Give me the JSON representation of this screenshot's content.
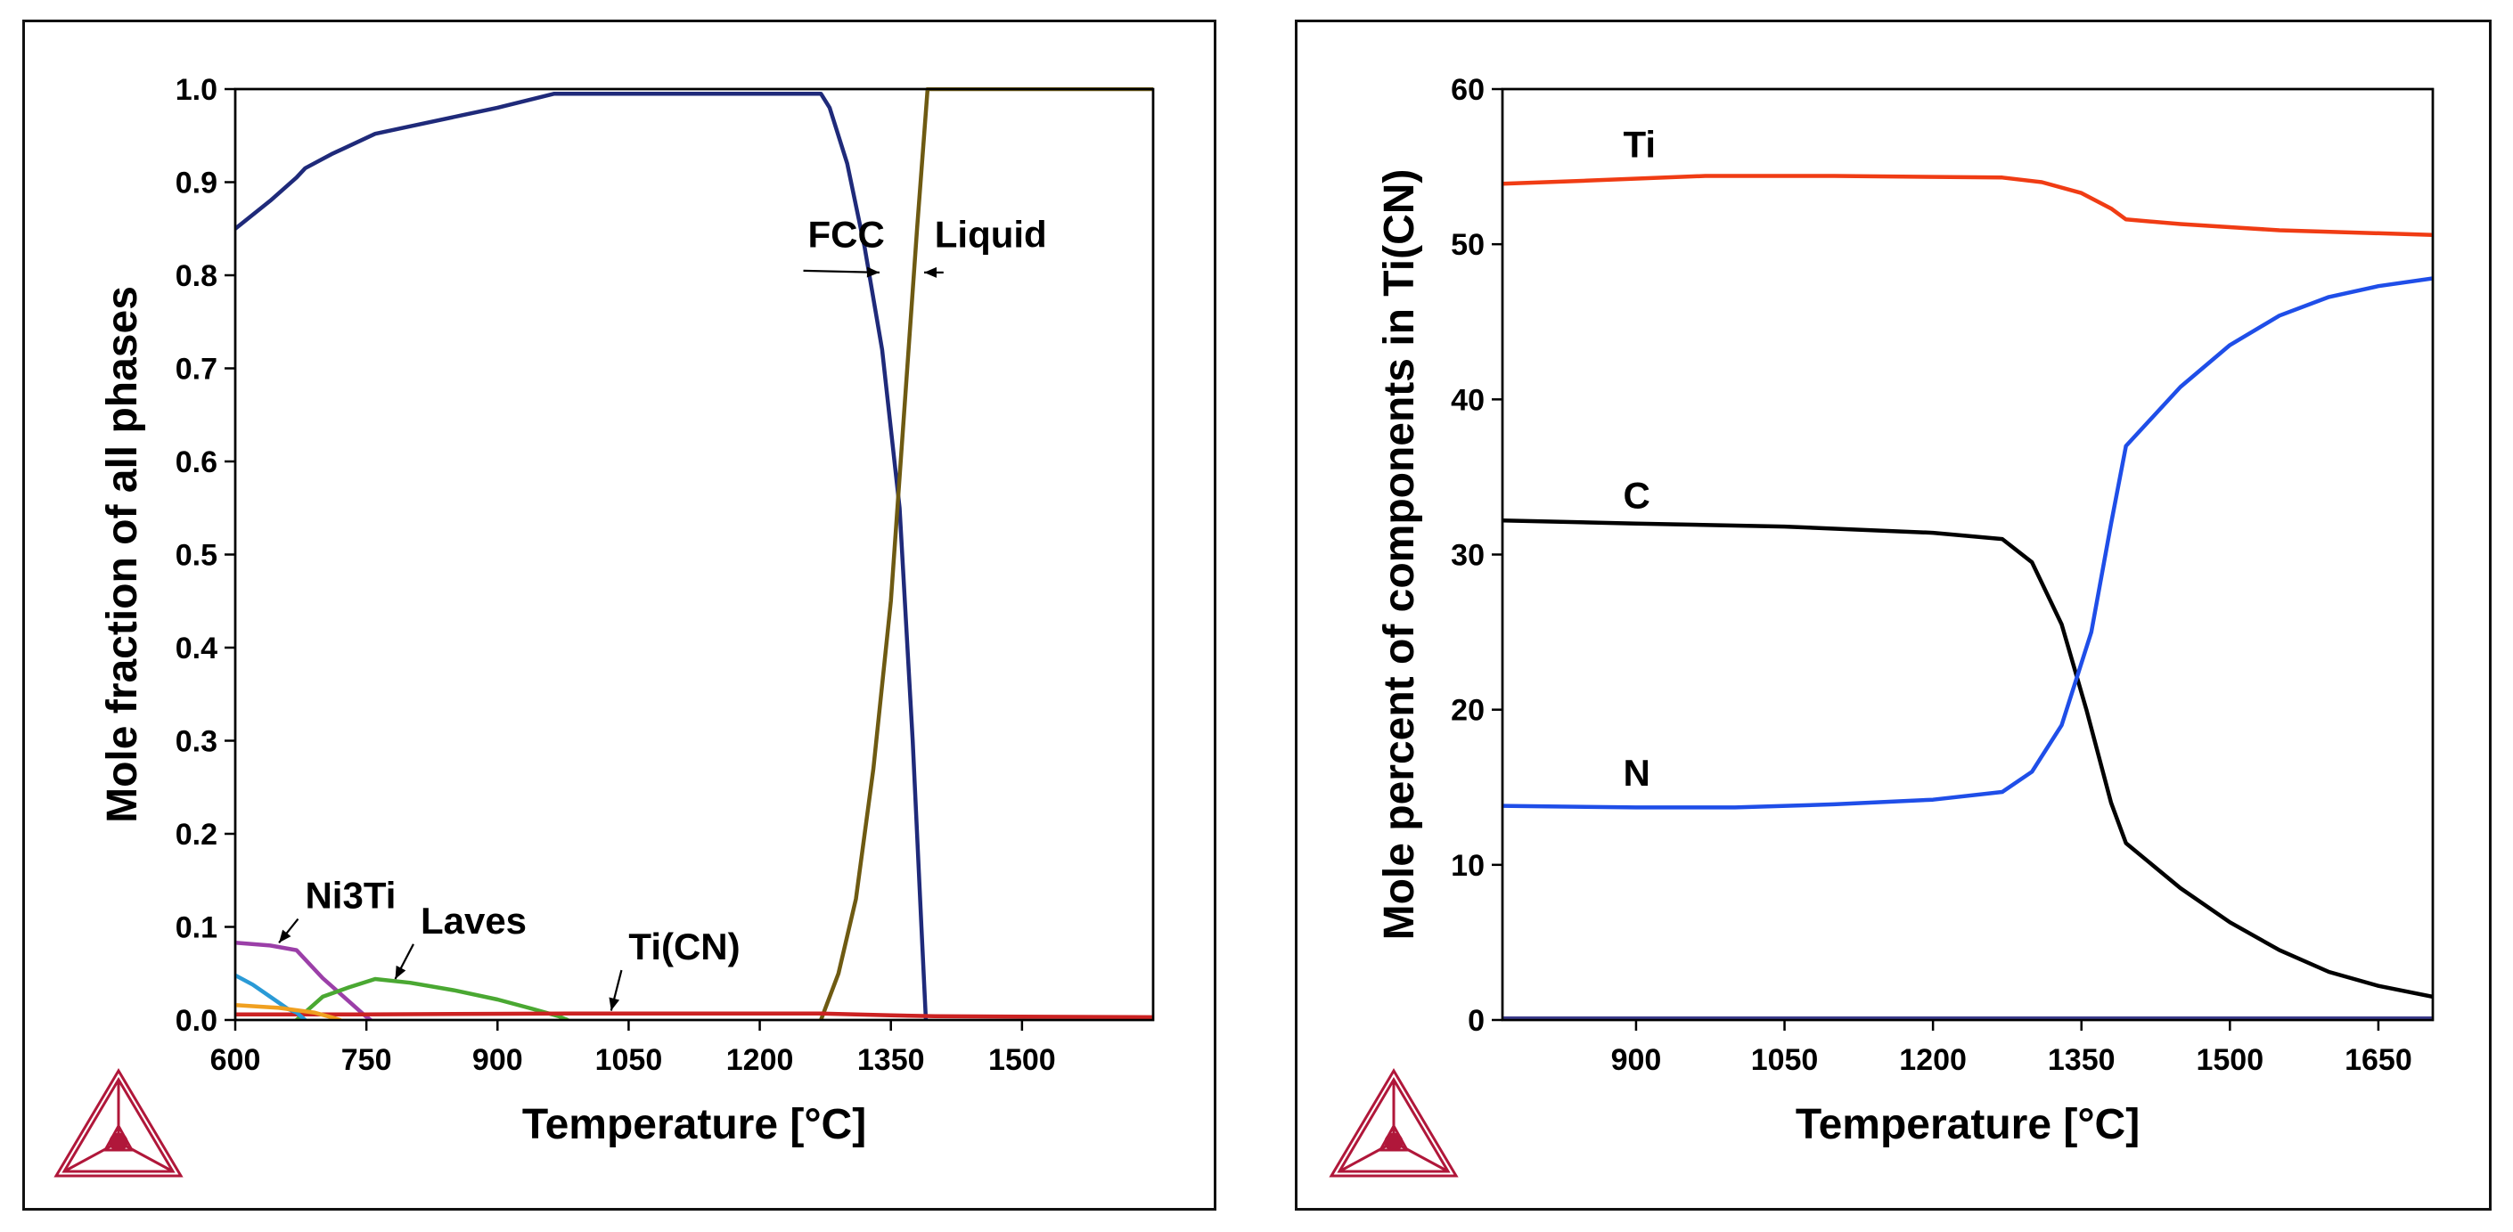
{
  "chart_data": [
    {
      "type": "line",
      "xlabel": "Temperature [°C]",
      "ylabel": "Mole fraction of all phases",
      "xlim": [
        600,
        1650
      ],
      "ylim": [
        0,
        1.0
      ],
      "xticks": [
        600,
        750,
        900,
        1050,
        1200,
        1350,
        1500
      ],
      "xtick_labels": [
        "600",
        "750",
        "900",
        "1050",
        "1200",
        "1350",
        "1500"
      ],
      "yticks": [
        0,
        0.1,
        0.2,
        0.3,
        0.4,
        0.5,
        0.6,
        0.7,
        0.8,
        0.9,
        1.0
      ],
      "ytick_labels": [
        "0.0",
        "0.1",
        "0.2",
        "0.3",
        "0.4",
        "0.5",
        "0.6",
        "0.7",
        "0.8",
        "0.9",
        "1.0"
      ],
      "series": [
        {
          "name": "FCC",
          "color": "#1f2a7a",
          "points": [
            [
              600,
              0.85
            ],
            [
              640,
              0.88
            ],
            [
              670,
              0.905
            ],
            [
              680,
              0.915
            ],
            [
              710,
              0.93
            ],
            [
              760,
              0.952
            ],
            [
              800,
              0.96
            ],
            [
              900,
              0.98
            ],
            [
              965,
              0.995
            ],
            [
              1100,
              0.995
            ],
            [
              1270,
              0.995
            ],
            [
              1280,
              0.98
            ],
            [
              1300,
              0.92
            ],
            [
              1320,
              0.83
            ],
            [
              1340,
              0.72
            ],
            [
              1360,
              0.55
            ],
            [
              1375,
              0.3
            ],
            [
              1385,
              0.1
            ],
            [
              1390,
              0.0
            ]
          ]
        },
        {
          "name": "Liquid",
          "color": "#6e5a12",
          "points": [
            [
              1270,
              0.0
            ],
            [
              1290,
              0.05
            ],
            [
              1310,
              0.13
            ],
            [
              1330,
              0.27
            ],
            [
              1350,
              0.45
            ],
            [
              1365,
              0.65
            ],
            [
              1380,
              0.85
            ],
            [
              1392,
              1.0
            ],
            [
              1650,
              1.0
            ]
          ]
        },
        {
          "name": "Ni3Ti",
          "color": "#9b3fa8",
          "points": [
            [
              600,
              0.083
            ],
            [
              640,
              0.08
            ],
            [
              670,
              0.075
            ],
            [
              700,
              0.045
            ],
            [
              730,
              0.02
            ],
            [
              748,
              0.005
            ],
            [
              755,
              0.0
            ]
          ]
        },
        {
          "name": "Laves",
          "color": "#4aa832",
          "points": [
            [
              670,
              0.0
            ],
            [
              700,
              0.025
            ],
            [
              730,
              0.035
            ],
            [
              760,
              0.044
            ],
            [
              800,
              0.04
            ],
            [
              850,
              0.032
            ],
            [
              900,
              0.022
            ],
            [
              940,
              0.012
            ],
            [
              970,
              0.004
            ],
            [
              980,
              0.0
            ]
          ]
        },
        {
          "name": "Ti(CN)",
          "color": "#cc2222",
          "points": [
            [
              600,
              0.006
            ],
            [
              750,
              0.006
            ],
            [
              1000,
              0.007
            ],
            [
              1270,
              0.007
            ],
            [
              1350,
              0.005
            ],
            [
              1400,
              0.004
            ],
            [
              1650,
              0.003
            ]
          ]
        },
        {
          "name": "cyan-phase",
          "color": "#2a9ad6",
          "points": [
            [
              600,
              0.048
            ],
            [
              620,
              0.038
            ],
            [
              640,
              0.025
            ],
            [
              660,
              0.012
            ],
            [
              670,
              0.008
            ],
            [
              680,
              0.0
            ]
          ]
        },
        {
          "name": "orange-phase",
          "color": "#f0a020",
          "points": [
            [
              600,
              0.016
            ],
            [
              650,
              0.013
            ],
            [
              690,
              0.008
            ],
            [
              710,
              0.003
            ],
            [
              720,
              0.0
            ]
          ]
        }
      ],
      "annotations": [
        {
          "text": "FCC",
          "x": 1255,
          "y": 0.83,
          "arrow_to": [
            1337,
            0.803
          ]
        },
        {
          "text": "Liquid",
          "x": 1400,
          "y": 0.83,
          "arrow_to": [
            1388,
            0.803
          ]
        },
        {
          "text": "Ni3Ti",
          "x": 680,
          "y": 0.12,
          "arrow_to": [
            650,
            0.083
          ]
        },
        {
          "text": "Laves",
          "x": 812,
          "y": 0.093,
          "arrow_to": [
            783,
            0.044
          ]
        },
        {
          "text": "Ti(CN)",
          "x": 1050,
          "y": 0.065,
          "arrow_to": [
            1030,
            0.01
          ]
        }
      ]
    },
    {
      "type": "line",
      "xlabel": "Temperature [°C]",
      "ylabel": "Mole percent of components in Ti(CN)",
      "xlim": [
        765,
        1705
      ],
      "ylim": [
        0,
        60
      ],
      "xticks": [
        900,
        1050,
        1200,
        1350,
        1500,
        1650
      ],
      "xtick_labels": [
        "900",
        "1050",
        "1200",
        "1350",
        "1500",
        "1650"
      ],
      "yticks": [
        0,
        10,
        20,
        30,
        40,
        50,
        60
      ],
      "ytick_labels": [
        "0",
        "10",
        "20",
        "30",
        "40",
        "50",
        "60"
      ],
      "series": [
        {
          "name": "Ti",
          "color": "#f03c14",
          "points": [
            [
              765,
              53.9
            ],
            [
              850,
              54.1
            ],
            [
              970,
              54.4
            ],
            [
              1100,
              54.4
            ],
            [
              1270,
              54.3
            ],
            [
              1310,
              54.0
            ],
            [
              1350,
              53.3
            ],
            [
              1380,
              52.3
            ],
            [
              1395,
              51.6
            ],
            [
              1450,
              51.3
            ],
            [
              1550,
              50.9
            ],
            [
              1705,
              50.6
            ]
          ]
        },
        {
          "name": "C",
          "color": "#000000",
          "points": [
            [
              765,
              32.2
            ],
            [
              900,
              32.0
            ],
            [
              1050,
              31.8
            ],
            [
              1200,
              31.4
            ],
            [
              1270,
              31.0
            ],
            [
              1300,
              29.5
            ],
            [
              1330,
              25.5
            ],
            [
              1355,
              20.0
            ],
            [
              1380,
              14.0
            ],
            [
              1395,
              11.4
            ],
            [
              1450,
              8.5
            ],
            [
              1500,
              6.3
            ],
            [
              1550,
              4.5
            ],
            [
              1600,
              3.1
            ],
            [
              1650,
              2.2
            ],
            [
              1705,
              1.5
            ]
          ]
        },
        {
          "name": "N",
          "color": "#1f4ee8",
          "points": [
            [
              765,
              13.8
            ],
            [
              900,
              13.7
            ],
            [
              1000,
              13.7
            ],
            [
              1100,
              13.9
            ],
            [
              1200,
              14.2
            ],
            [
              1270,
              14.7
            ],
            [
              1300,
              16.0
            ],
            [
              1330,
              19.0
            ],
            [
              1360,
              25.0
            ],
            [
              1380,
              32.0
            ],
            [
              1395,
              37.0
            ],
            [
              1450,
              40.8
            ],
            [
              1500,
              43.5
            ],
            [
              1550,
              45.4
            ],
            [
              1600,
              46.6
            ],
            [
              1650,
              47.3
            ],
            [
              1705,
              47.8
            ]
          ]
        },
        {
          "name": "baseline",
          "color": "#3a3a8a",
          "points": [
            [
              765,
              0.1
            ],
            [
              1705,
              0.1
            ]
          ]
        }
      ],
      "annotations": [
        {
          "text": "Ti",
          "x": 887,
          "y": 55.6
        },
        {
          "text": "C",
          "x": 887,
          "y": 33.0
        },
        {
          "text": "N",
          "x": 887,
          "y": 15.1
        }
      ]
    }
  ],
  "logos": [
    {
      "name": "thermo-calc-logo",
      "color": "#b0173a"
    },
    {
      "name": "thermo-calc-logo",
      "color": "#b0173a"
    }
  ]
}
